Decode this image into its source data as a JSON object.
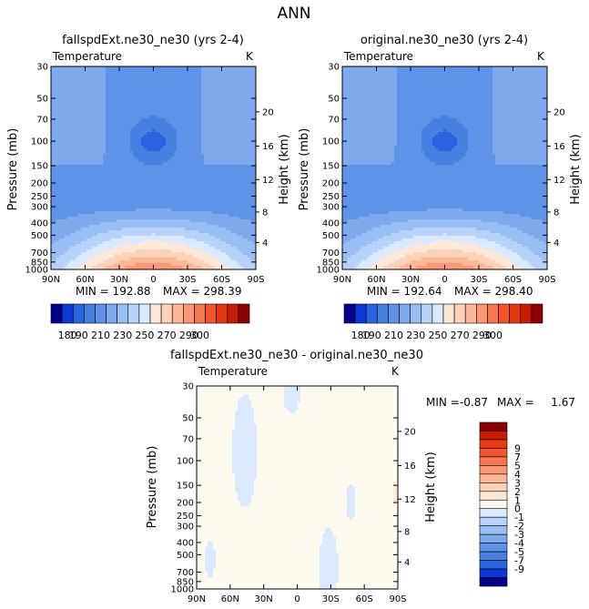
{
  "title": "ANN",
  "colors": {
    "neg": [
      "#fffaf0",
      "#dbe9ff",
      "#b7d3fb",
      "#99bef4",
      "#7eaaed",
      "#5f93e7",
      "#4a7fe2",
      "#2a63df",
      "#0b39d6",
      "#00008b"
    ],
    "pos": [
      "#fffaf0",
      "#fde7d6",
      "#fdd2b8",
      "#fcb796",
      "#fa9776",
      "#f6764f",
      "#f2552e",
      "#e43a14",
      "#c81d05",
      "#8b0000"
    ]
  },
  "chart_data": [
    {
      "type": "contour",
      "panel_title": "fallspdExt.ne30_ne30 (yrs 2-4)",
      "field_label": "Temperature",
      "units_label": "K",
      "ylabel": "Pressure (mb)",
      "right_ylabel": "Height (km)",
      "x_ticks": [
        "90N",
        "60N",
        "30N",
        "0",
        "30S",
        "60S",
        "90S"
      ],
      "y_ticks": [
        "30",
        "50",
        "70",
        "100",
        "150",
        "200",
        "250",
        "300",
        "400",
        "500",
        "700",
        "850",
        "1000"
      ],
      "right_y_ticks": [
        "20",
        "16",
        "12",
        "8",
        "4"
      ],
      "min_text": "MIN = 192.88",
      "max_text": "MAX = 298.39",
      "min": 192.88,
      "max": 298.39,
      "colorbar_labels": [
        "180",
        "190",
        "210",
        "230",
        "250",
        "270",
        "290",
        "300"
      ]
    },
    {
      "type": "contour",
      "panel_title": "original.ne30_ne30 (yrs 2-4)",
      "field_label": "Temperature",
      "units_label": "K",
      "ylabel": "Pressure (mb)",
      "right_ylabel": "Height (km)",
      "x_ticks": [
        "90N",
        "60N",
        "30N",
        "0",
        "30S",
        "60S",
        "90S"
      ],
      "y_ticks": [
        "30",
        "50",
        "70",
        "100",
        "150",
        "200",
        "250",
        "300",
        "400",
        "500",
        "700",
        "850",
        "1000"
      ],
      "right_y_ticks": [
        "20",
        "16",
        "12",
        "8",
        "4"
      ],
      "min_text": "MIN = 192.64",
      "max_text": "MAX = 298.40",
      "min": 192.64,
      "max": 298.4,
      "colorbar_labels": [
        "180",
        "190",
        "210",
        "230",
        "250",
        "270",
        "290",
        "300"
      ]
    },
    {
      "type": "contour",
      "panel_title": "fallspdExt.ne30_ne30 - original.ne30_ne30",
      "field_label": "Temperature",
      "units_label": "K",
      "ylabel": "Pressure (mb)",
      "right_ylabel": "Height (km)",
      "x_ticks": [
        "90N",
        "60N",
        "30N",
        "0",
        "30S",
        "60S",
        "90S"
      ],
      "y_ticks": [
        "30",
        "50",
        "70",
        "100",
        "150",
        "200",
        "250",
        "300",
        "400",
        "500",
        "700",
        "850",
        "1000"
      ],
      "right_y_ticks": [
        "20",
        "16",
        "12",
        "8",
        "4"
      ],
      "min_label": "MIN =",
      "min_value": "-0.87",
      "max_label": "MAX =",
      "max_value": "1.67",
      "min": -0.87,
      "max": 1.67,
      "colorbar_labels": [
        "9",
        "7",
        "5",
        "4",
        "3",
        "2",
        "1",
        "0",
        "-1",
        "-2",
        "-3",
        "-4",
        "-5",
        "-7",
        "-9"
      ]
    }
  ]
}
